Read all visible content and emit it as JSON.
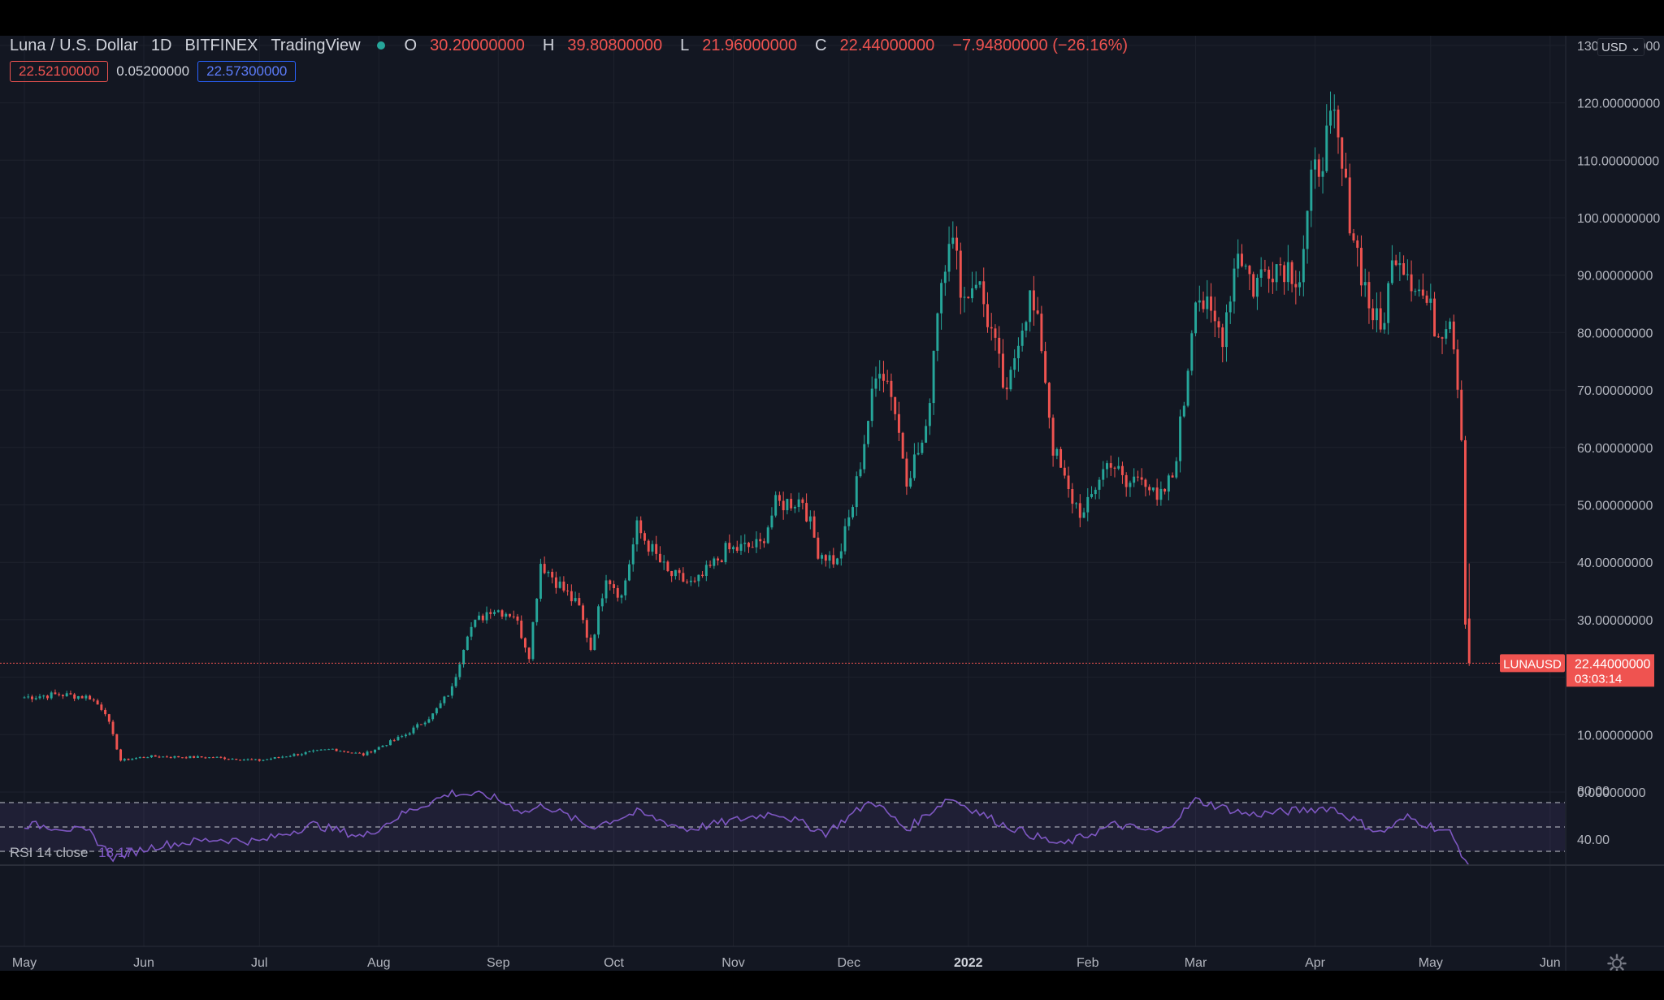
{
  "legend": {
    "symbol": "Luna / U.S. Dollar",
    "interval": "1D",
    "exchange": "BITFINEX",
    "source": "TradingView",
    "open_key": "O",
    "open": "30.20000000",
    "high_key": "H",
    "high": "39.80800000",
    "low_key": "L",
    "low": "21.96000000",
    "close_key": "C",
    "close": "22.44000000",
    "change": "−7.94800000 (−26.16%)",
    "indicator_1": "22.52100000",
    "indicator_2": "0.05200000",
    "indicator_3": "22.57300000"
  },
  "currency_button": "USD",
  "price_tag": {
    "symbol": "LUNAUSD",
    "price": "22.44000000",
    "countdown": "03:03:14"
  },
  "rsi": {
    "label": "RSI",
    "params": "14 close",
    "value": "18.17",
    "axis_labels": [
      "80.00",
      "40.00"
    ]
  },
  "icons": {
    "settings": "gear-icon",
    "status": "live-dot-icon"
  },
  "colors": {
    "up": "#26a69a",
    "down": "#ef5350",
    "rsi": "#7e57c2",
    "background": "#131722"
  },
  "chart_data": [
    {
      "type": "candlestick",
      "title": "Luna / U.S. Dollar · 1D · BITFINEX",
      "x_axis": {
        "ticks": [
          "May",
          "Jun",
          "Jul",
          "Aug",
          "Sep",
          "Oct",
          "Nov",
          "Dec",
          "2022",
          "Feb",
          "Mar",
          "Apr",
          "May",
          "Jun"
        ]
      },
      "y_axis": {
        "ylim": [
          -8,
          130
        ],
        "ticks": [
          "130.00000000",
          "120.00000000",
          "110.00000000",
          "100.00000000",
          "90.00000000",
          "80.00000000",
          "70.00000000",
          "60.00000000",
          "50.00000000",
          "40.00000000",
          "30.00000000",
          "20.00000000",
          "10.00000000",
          "0.00000000"
        ]
      },
      "series": [
        {
          "name": "LUNAUSD",
          "close_path": [
            [
              "2021-05-01",
              16.5
            ],
            [
              "2021-05-10",
              17.0
            ],
            [
              "2021-05-18",
              16.5
            ],
            [
              "2021-05-22",
              14.0
            ],
            [
              "2021-05-26",
              5.5
            ],
            [
              "2021-06-02",
              6.2
            ],
            [
              "2021-06-20",
              6.0
            ],
            [
              "2021-07-01",
              5.5
            ],
            [
              "2021-07-10",
              6.5
            ],
            [
              "2021-07-20",
              7.5
            ],
            [
              "2021-07-28",
              6.5
            ],
            [
              "2021-08-08",
              10.0
            ],
            [
              "2021-08-15",
              13.5
            ],
            [
              "2021-08-20",
              18.0
            ],
            [
              "2021-08-24",
              28.0
            ],
            [
              "2021-08-30",
              32.0
            ],
            [
              "2021-09-05",
              31.0
            ],
            [
              "2021-09-09",
              24.0
            ],
            [
              "2021-09-12",
              40.0
            ],
            [
              "2021-09-22",
              32.0
            ],
            [
              "2021-09-25",
              25.0
            ],
            [
              "2021-09-29",
              38.0
            ],
            [
              "2021-10-03",
              34.0
            ],
            [
              "2021-10-07",
              46.0
            ],
            [
              "2021-10-15",
              38.0
            ],
            [
              "2021-10-22",
              36.0
            ],
            [
              "2021-10-30",
              42.0
            ],
            [
              "2021-11-08",
              43.0
            ],
            [
              "2021-11-12",
              50.0
            ],
            [
              "2021-11-19",
              51.0
            ],
            [
              "2021-11-23",
              42.0
            ],
            [
              "2021-11-28",
              40.0
            ],
            [
              "2021-12-02",
              50.0
            ],
            [
              "2021-12-06",
              65.0
            ],
            [
              "2021-12-09",
              75.0
            ],
            [
              "2021-12-12",
              70.0
            ],
            [
              "2021-12-16",
              55.0
            ],
            [
              "2021-12-21",
              62.0
            ],
            [
              "2021-12-24",
              85.0
            ],
            [
              "2021-12-27",
              98.0
            ],
            [
              "2021-12-31",
              86.0
            ],
            [
              "2022-01-03",
              90.0
            ],
            [
              "2022-01-07",
              80.0
            ],
            [
              "2022-01-11",
              68.0
            ],
            [
              "2022-01-14",
              80.0
            ],
            [
              "2022-01-17",
              86.0
            ],
            [
              "2022-01-20",
              78.0
            ],
            [
              "2022-01-23",
              60.0
            ],
            [
              "2022-01-27",
              52.0
            ],
            [
              "2022-01-31",
              48.0
            ],
            [
              "2022-02-04",
              55.0
            ],
            [
              "2022-02-07",
              58.0
            ],
            [
              "2022-02-11",
              53.0
            ],
            [
              "2022-02-15",
              56.0
            ],
            [
              "2022-02-19",
              50.0
            ],
            [
              "2022-02-23",
              55.0
            ],
            [
              "2022-02-26",
              68.0
            ],
            [
              "2022-03-01",
              88.0
            ],
            [
              "2022-03-05",
              82.0
            ],
            [
              "2022-03-08",
              80.0
            ],
            [
              "2022-03-12",
              95.0
            ],
            [
              "2022-03-16",
              88.0
            ],
            [
              "2022-03-20",
              92.0
            ],
            [
              "2022-03-24",
              92.0
            ],
            [
              "2022-03-28",
              90.0
            ],
            [
              "2022-03-31",
              105.0
            ],
            [
              "2022-04-03",
              112.0
            ],
            [
              "2022-04-06",
              116.0
            ],
            [
              "2022-04-09",
              104.0
            ],
            [
              "2022-04-12",
              94.0
            ],
            [
              "2022-04-15",
              85.0
            ],
            [
              "2022-04-18",
              80.0
            ],
            [
              "2022-04-22",
              95.0
            ],
            [
              "2022-04-26",
              90.0
            ],
            [
              "2022-04-30",
              85.0
            ],
            [
              "2022-05-03",
              80.0
            ],
            [
              "2022-05-06",
              84.0
            ],
            [
              "2022-05-08",
              72.0
            ],
            [
              "2022-05-09",
              62.0
            ],
            [
              "2022-05-10",
              30.0
            ],
            [
              "2022-05-11",
              22.44
            ]
          ],
          "last": {
            "open": 30.2,
            "high": 39.808,
            "low": 21.96,
            "close": 22.44
          }
        }
      ],
      "annotations": [
        "LUNAUSD 22.44000000"
      ]
    },
    {
      "type": "line",
      "title": "RSI 14 close",
      "y_axis": {
        "ylim": [
          20,
          90
        ],
        "ticks": [
          "80.00",
          "40.00"
        ],
        "bands": [
          30,
          50,
          70
        ]
      },
      "series": [
        {
          "name": "RSI",
          "values": [
            [
              "2021-05-01",
              52
            ],
            [
              "2021-05-10",
              50
            ],
            [
              "2021-05-18",
              45
            ],
            [
              "2021-05-24",
              25
            ],
            [
              "2021-06-05",
              35
            ],
            [
              "2021-06-20",
              40
            ],
            [
              "2021-07-01",
              38
            ],
            [
              "2021-07-15",
              52
            ],
            [
              "2021-07-28",
              42
            ],
            [
              "2021-08-08",
              62
            ],
            [
              "2021-08-20",
              78
            ],
            [
              "2021-08-30",
              75
            ],
            [
              "2021-09-08",
              62
            ],
            [
              "2021-09-13",
              68
            ],
            [
              "2021-09-25",
              50
            ],
            [
              "2021-10-07",
              62
            ],
            [
              "2021-10-20",
              48
            ],
            [
              "2021-11-12",
              62
            ],
            [
              "2021-11-25",
              45
            ],
            [
              "2021-12-07",
              72
            ],
            [
              "2021-12-16",
              48
            ],
            [
              "2021-12-27",
              74
            ],
            [
              "2022-01-10",
              52
            ],
            [
              "2022-01-25",
              35
            ],
            [
              "2022-02-08",
              52
            ],
            [
              "2022-02-20",
              45
            ],
            [
              "2022-03-01",
              72
            ],
            [
              "2022-03-15",
              60
            ],
            [
              "2022-04-05",
              66
            ],
            [
              "2022-04-18",
              45
            ],
            [
              "2022-04-25",
              58
            ],
            [
              "2022-05-06",
              45
            ],
            [
              "2022-05-11",
              18.17
            ]
          ]
        }
      ]
    }
  ]
}
